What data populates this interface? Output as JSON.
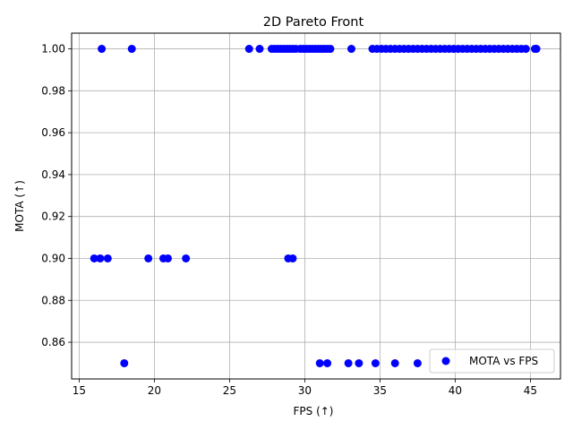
{
  "chart_data": {
    "type": "scatter",
    "title": "2D Pareto Front",
    "xlabel": "FPS (↑)",
    "ylabel": "MOTA (↑)",
    "xlim": [
      14.5,
      47.0
    ],
    "ylim": [
      0.8425,
      1.0075
    ],
    "xticks": [
      15,
      20,
      25,
      30,
      35,
      40,
      45
    ],
    "yticks": [
      0.86,
      0.88,
      0.9,
      0.92,
      0.94,
      0.96,
      0.98,
      1.0
    ],
    "ytick_labels": [
      "0.86",
      "0.88",
      "0.90",
      "0.92",
      "0.94",
      "0.96",
      "0.98",
      "1.00"
    ],
    "grid": true,
    "legend_position": "lower right",
    "marker_color": "#0000ff",
    "series": [
      {
        "name": "MOTA vs FPS",
        "points": [
          [
            16.5,
            1.0
          ],
          [
            18.5,
            1.0
          ],
          [
            26.3,
            1.0
          ],
          [
            27.0,
            1.0
          ],
          [
            27.8,
            1.0
          ],
          [
            28.0,
            1.0
          ],
          [
            28.2,
            1.0
          ],
          [
            28.4,
            1.0
          ],
          [
            28.6,
            1.0
          ],
          [
            28.8,
            1.0
          ],
          [
            29.0,
            1.0
          ],
          [
            29.2,
            1.0
          ],
          [
            29.4,
            1.0
          ],
          [
            29.7,
            1.0
          ],
          [
            29.9,
            1.0
          ],
          [
            30.1,
            1.0
          ],
          [
            30.3,
            1.0
          ],
          [
            30.5,
            1.0
          ],
          [
            30.7,
            1.0
          ],
          [
            30.9,
            1.0
          ],
          [
            31.1,
            1.0
          ],
          [
            31.3,
            1.0
          ],
          [
            31.5,
            1.0
          ],
          [
            31.7,
            1.0
          ],
          [
            33.1,
            1.0
          ],
          [
            34.5,
            1.0
          ],
          [
            34.8,
            1.0
          ],
          [
            35.1,
            1.0
          ],
          [
            35.4,
            1.0
          ],
          [
            35.7,
            1.0
          ],
          [
            36.0,
            1.0
          ],
          [
            36.3,
            1.0
          ],
          [
            36.6,
            1.0
          ],
          [
            36.9,
            1.0
          ],
          [
            37.2,
            1.0
          ],
          [
            37.5,
            1.0
          ],
          [
            37.8,
            1.0
          ],
          [
            38.1,
            1.0
          ],
          [
            38.4,
            1.0
          ],
          [
            38.7,
            1.0
          ],
          [
            39.0,
            1.0
          ],
          [
            39.3,
            1.0
          ],
          [
            39.6,
            1.0
          ],
          [
            39.9,
            1.0
          ],
          [
            40.2,
            1.0
          ],
          [
            40.5,
            1.0
          ],
          [
            40.8,
            1.0
          ],
          [
            41.1,
            1.0
          ],
          [
            41.4,
            1.0
          ],
          [
            41.7,
            1.0
          ],
          [
            42.0,
            1.0
          ],
          [
            42.3,
            1.0
          ],
          [
            42.6,
            1.0
          ],
          [
            42.9,
            1.0
          ],
          [
            43.2,
            1.0
          ],
          [
            43.5,
            1.0
          ],
          [
            43.8,
            1.0
          ],
          [
            44.1,
            1.0
          ],
          [
            44.4,
            1.0
          ],
          [
            44.7,
            1.0
          ],
          [
            45.3,
            1.0
          ],
          [
            45.4,
            1.0
          ],
          [
            16.0,
            0.9
          ],
          [
            16.4,
            0.9
          ],
          [
            16.9,
            0.9
          ],
          [
            19.6,
            0.9
          ],
          [
            20.6,
            0.9
          ],
          [
            20.9,
            0.9
          ],
          [
            22.1,
            0.9
          ],
          [
            28.9,
            0.9
          ],
          [
            29.2,
            0.9
          ],
          [
            18.0,
            0.85
          ],
          [
            31.0,
            0.85
          ],
          [
            31.5,
            0.85
          ],
          [
            32.9,
            0.85
          ],
          [
            33.6,
            0.85
          ],
          [
            34.7,
            0.85
          ],
          [
            36.0,
            0.85
          ],
          [
            37.5,
            0.85
          ]
        ]
      }
    ]
  }
}
